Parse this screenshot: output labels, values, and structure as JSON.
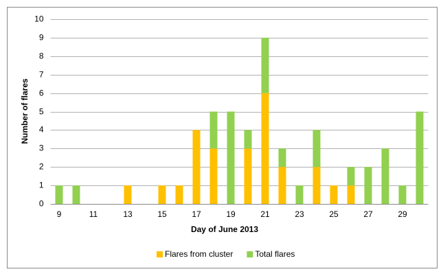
{
  "chart_data": {
    "type": "stacked_bar",
    "x_label": "Day of June 2013",
    "y_label": "Number of flares",
    "categories": [
      "9",
      null,
      "11",
      null,
      "13",
      null,
      "15",
      null,
      "17",
      null,
      "19",
      null,
      "21",
      null,
      "23",
      null,
      "25",
      null,
      "27",
      null,
      "29",
      null
    ],
    "series": [
      {
        "name": "Flares from cluster",
        "color": "#ffc000",
        "values": [
          0,
          0,
          0,
          0,
          1,
          0,
          1,
          1,
          4,
          3,
          0,
          3,
          6,
          2,
          0,
          2,
          1,
          1,
          0,
          0,
          0,
          0
        ]
      },
      {
        "name": "Total flares",
        "color": "#92d050",
        "values": [
          1,
          1,
          0,
          0,
          0,
          0,
          0,
          0,
          0,
          2,
          5,
          1,
          3,
          1,
          1,
          2,
          0,
          1,
          2,
          3,
          1,
          5
        ]
      }
    ],
    "ylim": [
      0,
      10
    ],
    "yticks": [
      0,
      1,
      2,
      3,
      4,
      5,
      6,
      7,
      8,
      9,
      10
    ],
    "grid": true,
    "legend": "bottom"
  }
}
